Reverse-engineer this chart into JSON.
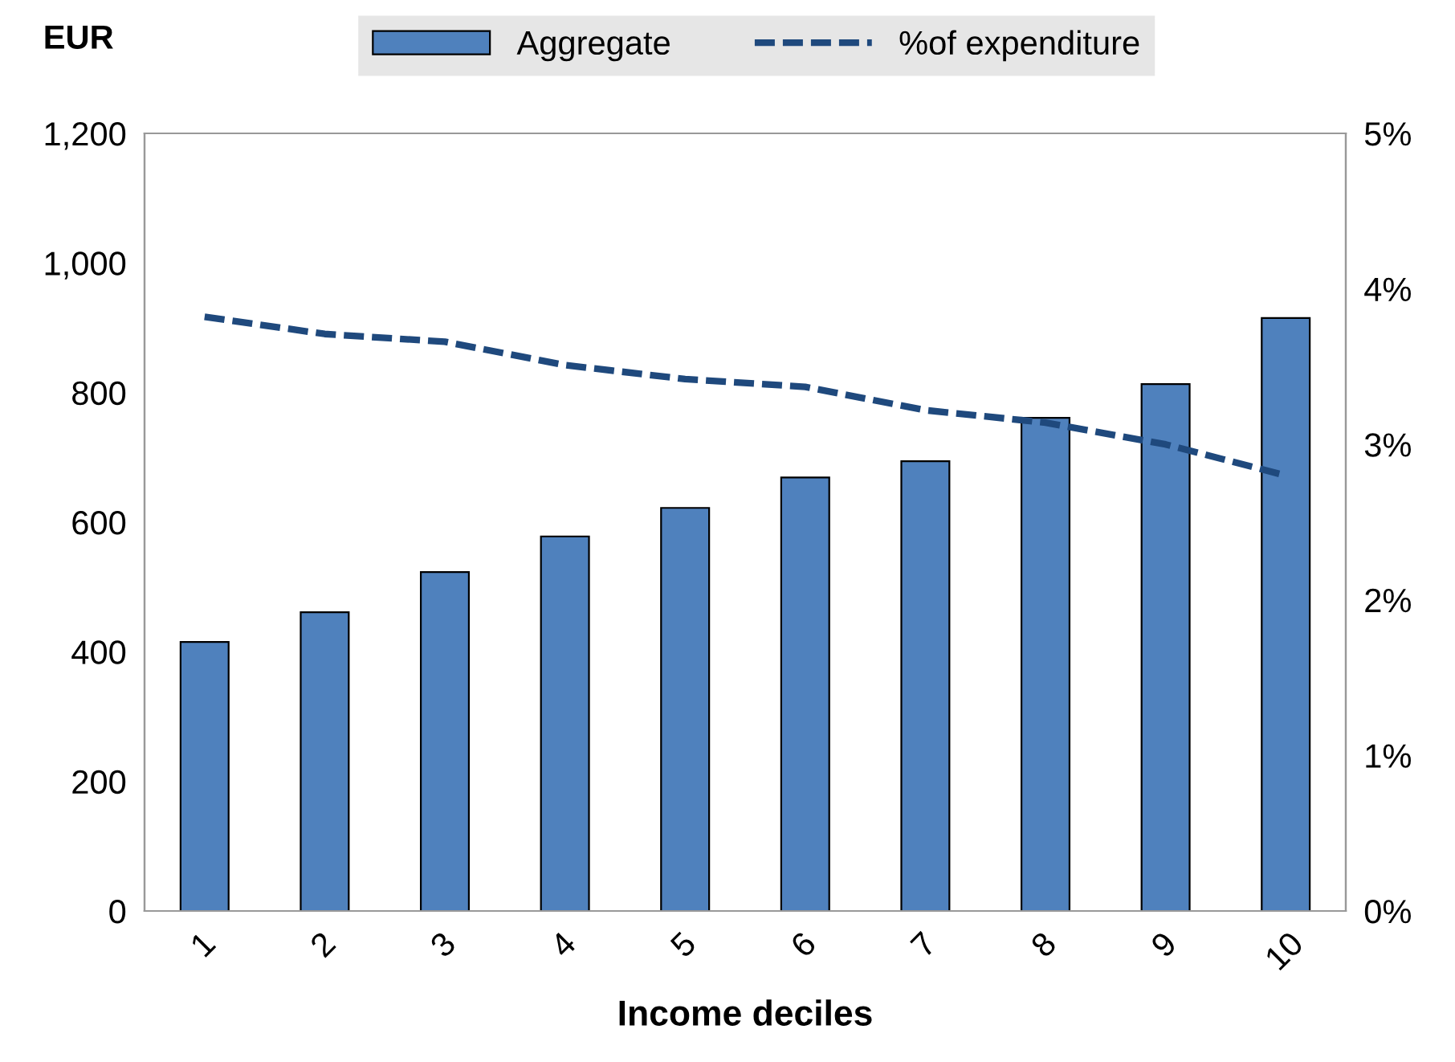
{
  "chart_data": {
    "type": "bar",
    "xlabel": "Income deciles",
    "ylabel": "EUR",
    "categories": [
      "1",
      "2",
      "3",
      "4",
      "5",
      "6",
      "7",
      "8",
      "9",
      "10"
    ],
    "series": [
      {
        "name": "Aggregate",
        "color": "#4f81bd",
        "values": [
          415,
          461,
          523,
          578,
          622,
          669,
          694,
          761,
          813,
          915
        ]
      },
      {
        "name": "%of expenditure",
        "type": "line",
        "axis": "y2",
        "color": "#1f497d",
        "line_style": "dashed",
        "values": [
          3.82,
          3.71,
          3.66,
          3.51,
          3.42,
          3.37,
          3.22,
          3.14,
          3.0,
          2.8
        ]
      }
    ],
    "ylim": [
      0,
      1200
    ],
    "yticks": [
      0,
      {
        "value": 200,
        "label": "200"
      },
      {
        "value": 400,
        "label": "400"
      },
      {
        "value": 600,
        "label": "600"
      },
      {
        "value": 800,
        "label": "800"
      },
      {
        "value": 1000,
        "label": "1,000"
      },
      {
        "value": 1200,
        "label": "1,200"
      }
    ],
    "y2lim": [
      0,
      5
    ],
    "y2ticks": [
      {
        "value": 0,
        "label": "0%"
      },
      {
        "value": 1,
        "label": "1%"
      },
      {
        "value": 2,
        "label": "2%"
      },
      {
        "value": 3,
        "label": "3%"
      },
      {
        "value": 4,
        "label": "4%"
      },
      {
        "value": 5,
        "label": "5%"
      }
    ],
    "grid": false,
    "legend": "top"
  }
}
